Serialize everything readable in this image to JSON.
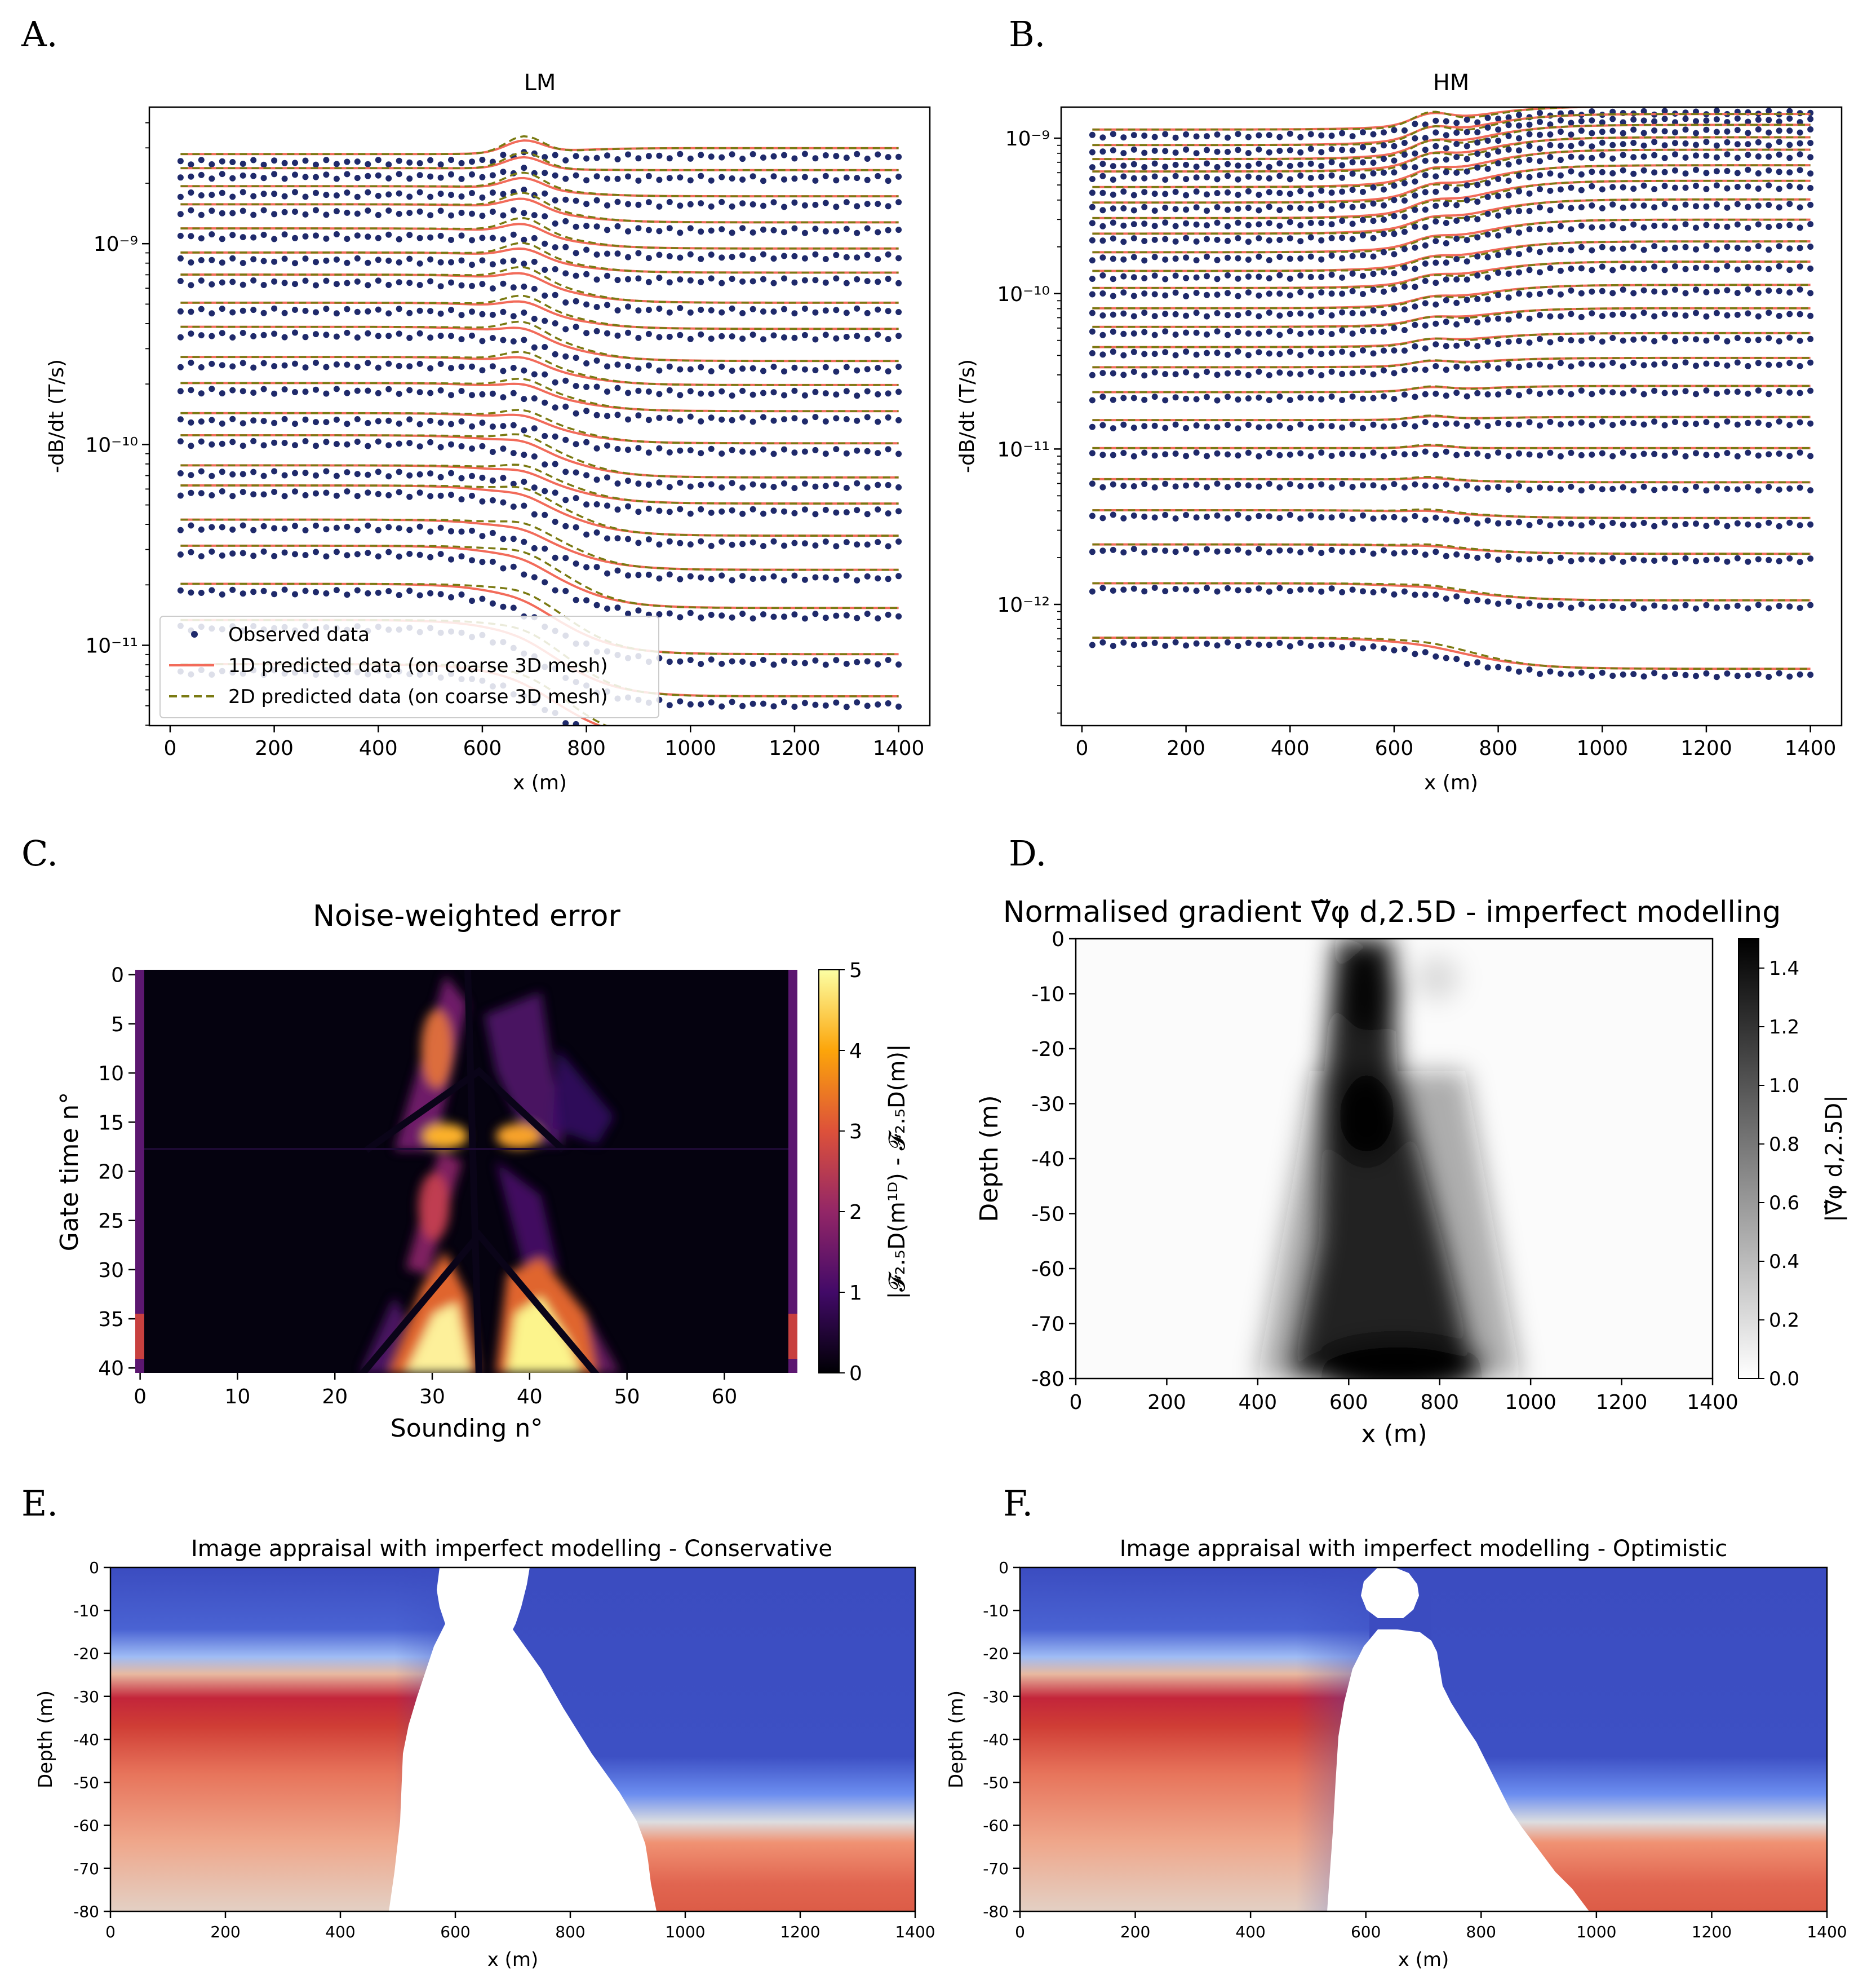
{
  "colors": {
    "observed": "#1f2a6b",
    "pred1d": "#f26b5a",
    "pred2d": "#7a7a12",
    "cool_blue": "#3a4fc4",
    "warm_red": "#b40426"
  },
  "chart_data": [
    {
      "panel": "A.",
      "type": "line",
      "title": "LM",
      "xlabel": "x (m)",
      "ylabel": "-dB/dt (T/s)",
      "xlim": [
        -40,
        1460
      ],
      "yscale": "log",
      "ylim_exp": [
        -11.4,
        -8.32
      ],
      "xticks": [
        0,
        200,
        400,
        600,
        800,
        1000,
        1200,
        1400
      ],
      "yticks": [
        {
          "exp": -9,
          "label": "10⁻⁹"
        },
        {
          "exp": -10,
          "label": "10⁻¹⁰"
        },
        {
          "exp": -11,
          "label": "10⁻¹¹"
        }
      ],
      "gates_left_log10": [
        -8.56,
        -8.63,
        -8.72,
        -8.81,
        -8.93,
        -9.05,
        -9.16,
        -9.3,
        -9.42,
        -9.57,
        -9.7,
        -9.85,
        -9.96,
        -10.11,
        -10.21,
        -10.38,
        -10.51,
        -10.7,
        -10.88,
        -11.1
      ],
      "gates_right_log10": [
        -8.53,
        -8.64,
        -8.77,
        -8.9,
        -9.03,
        -9.15,
        -9.3,
        -9.43,
        -9.59,
        -9.71,
        -9.84,
        -10.0,
        -10.17,
        -10.3,
        -10.46,
        -10.63,
        -10.82,
        -11.05,
        -11.26,
        -11.48
      ],
      "x_start": 20,
      "x_end": 1400,
      "x_transition": 740,
      "transition_width": 60,
      "legend": {
        "observed": "Observed data",
        "pred1d": "1D predicted data (on coarse 3D mesh)",
        "pred2d": "2D predicted data (on coarse 3D mesh)",
        "loc": "lower-left"
      }
    },
    {
      "panel": "B.",
      "type": "line",
      "title": "HM",
      "xlabel": "x (m)",
      "ylabel": "-dB/dt (T/s)",
      "xlim": [
        -40,
        1460
      ],
      "yscale": "log",
      "ylim_exp": [
        -12.78,
        -8.8
      ],
      "xticks": [
        0,
        200,
        400,
        600,
        800,
        1000,
        1200,
        1400
      ],
      "yticks": [
        {
          "exp": -9,
          "label": "10⁻⁹"
        },
        {
          "exp": -10,
          "label": "10⁻¹⁰"
        },
        {
          "exp": -11,
          "label": "10⁻¹¹"
        },
        {
          "exp": -12,
          "label": "10⁻¹²"
        }
      ],
      "gates_left_log10": [
        -8.95,
        -9.05,
        -9.14,
        -9.22,
        -9.32,
        -9.42,
        -9.52,
        -9.62,
        -9.74,
        -9.86,
        -9.97,
        -10.1,
        -10.22,
        -10.35,
        -10.48,
        -10.64,
        -10.82,
        -11.0,
        -11.2,
        -11.4,
        -11.62,
        -11.87,
        -12.22
      ],
      "gates_right_log10": [
        -8.8,
        -8.85,
        -8.92,
        -9.0,
        -9.08,
        -9.18,
        -9.28,
        -9.4,
        -9.53,
        -9.67,
        -9.8,
        -9.95,
        -10.1,
        -10.26,
        -10.42,
        -10.6,
        -10.8,
        -11.0,
        -11.22,
        -11.45,
        -11.68,
        -11.98,
        -12.42
      ],
      "x_start": 20,
      "x_end": 1400,
      "x_transition": 730,
      "transition_width": 70
    },
    {
      "panel": "C.",
      "type": "heatmap",
      "title": "Noise-weighted error",
      "xlabel": "Sounding n°",
      "ylabel": "Gate time n°",
      "xticks": [
        0,
        10,
        20,
        30,
        40,
        50,
        60
      ],
      "yticks": [
        0,
        5,
        10,
        15,
        20,
        25,
        30,
        35,
        40
      ],
      "n_soundings": 68,
      "n_gates": 41,
      "colormap": "inferno",
      "colorbar": {
        "min": 0,
        "max": 5,
        "ticks": [
          0,
          1,
          2,
          3,
          4,
          5
        ],
        "label": "|𝓕₂.₅D(m¹ᴰ) - 𝓕₂.₅D(m)|"
      }
    },
    {
      "panel": "D.",
      "type": "heatmap",
      "title": "Normalised gradient ∇̃φ d,2.5D - imperfect modelling",
      "xlabel": "x (m)",
      "ylabel": "Depth (m)",
      "xticks": [
        0,
        200,
        400,
        600,
        800,
        1000,
        1200,
        1400
      ],
      "yticks": [
        0,
        -10,
        -20,
        -30,
        -40,
        -50,
        -60,
        -70,
        -80
      ],
      "colormap": "Greys",
      "colorbar": {
        "min": 0,
        "max": 1.5,
        "ticks": [
          0.0,
          0.2,
          0.4,
          0.6,
          0.8,
          1.0,
          1.2,
          1.4
        ],
        "tick_labels": [
          "0.0",
          "0.2",
          "0.4",
          "0.6",
          "0.8",
          "1.0",
          "1.2",
          "1.4"
        ],
        "label": "|∇̃φ d,2.5D|"
      }
    },
    {
      "panel": "E.",
      "type": "heatmap",
      "title": "Image appraisal with imperfect modelling - Conservative",
      "xlabel": "x (m)",
      "ylabel": "Depth (m)",
      "xticks": [
        0,
        200,
        400,
        600,
        800,
        1000,
        1200,
        1400
      ],
      "yticks": [
        0,
        -10,
        -20,
        -30,
        -40,
        -50,
        -60,
        -70,
        -80
      ],
      "colormap": "coolwarm",
      "mask": "conservative"
    },
    {
      "panel": "F.",
      "type": "heatmap",
      "title": "Image appraisal with imperfect modelling - Optimistic",
      "xlabel": "x (m)",
      "ylabel": "Depth (m)",
      "xticks": [
        0,
        200,
        400,
        600,
        800,
        1000,
        1200,
        1400
      ],
      "yticks": [
        0,
        -10,
        -20,
        -30,
        -40,
        -50,
        -60,
        -70,
        -80
      ],
      "colormap": "coolwarm",
      "mask": "optimistic"
    }
  ]
}
